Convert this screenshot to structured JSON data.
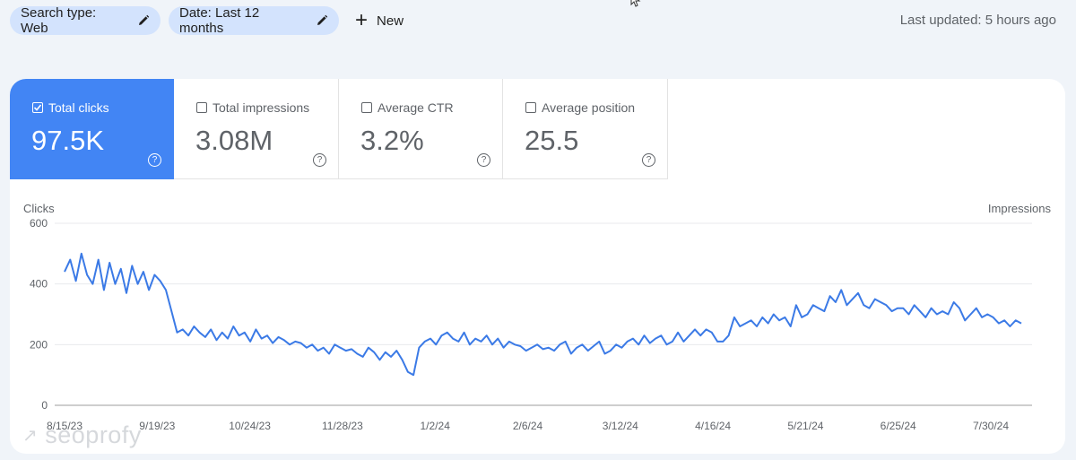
{
  "filters": {
    "search_type": "Search type: Web",
    "date": "Date: Last 12 months",
    "new_label": "New",
    "last_updated": "Last updated: 5 hours ago"
  },
  "metrics": [
    {
      "label": "Total clicks",
      "value": "97.5K",
      "checked": true,
      "help": "?"
    },
    {
      "label": "Total impressions",
      "value": "3.08M",
      "checked": false,
      "help": "?"
    },
    {
      "label": "Average CTR",
      "value": "3.2%",
      "checked": false,
      "help": "?"
    },
    {
      "label": "Average position",
      "value": "25.5",
      "checked": false,
      "help": "?"
    }
  ],
  "watermark": "seoprofy",
  "colors": {
    "accent": "#4285f4",
    "line": "#3b7ae6",
    "chip": "#d3e3fd"
  },
  "chart_data": {
    "type": "line",
    "ylabel": "Clicks",
    "y2label": "Impressions",
    "ylim": [
      0,
      600
    ],
    "yticks": [
      0,
      200,
      400,
      600
    ],
    "xtick_labels": [
      "8/15/23",
      "9/19/23",
      "10/24/23",
      "11/28/23",
      "1/2/24",
      "2/6/24",
      "3/12/24",
      "4/16/24",
      "5/21/24",
      "6/25/24",
      "7/30/24"
    ],
    "grid": true,
    "series": [
      {
        "values": [
          440,
          480,
          410,
          500,
          430,
          400,
          480,
          380,
          470,
          400,
          450,
          370,
          460,
          400,
          440,
          380,
          430,
          410,
          380,
          310,
          240,
          250,
          230,
          260,
          240,
          225,
          250,
          215,
          240,
          220,
          260,
          230,
          240,
          210,
          250,
          220,
          230,
          205,
          225,
          215,
          200,
          210,
          205,
          190,
          200,
          180,
          190,
          170,
          200,
          190,
          180,
          185,
          170,
          160,
          190,
          175,
          150,
          175,
          160,
          180,
          150,
          110,
          100,
          190,
          210,
          220,
          200,
          230,
          240,
          220,
          210,
          240,
          200,
          220,
          210,
          230,
          200,
          220,
          190,
          210,
          200,
          195,
          180,
          190,
          200,
          185,
          190,
          180,
          200,
          210,
          170,
          190,
          200,
          180,
          195,
          210,
          170,
          180,
          200,
          190,
          210,
          220,
          200,
          230,
          205,
          220,
          230,
          200,
          210,
          240,
          210,
          230,
          250,
          230,
          250,
          240,
          210,
          210,
          230,
          290,
          260,
          270,
          280,
          260,
          290,
          270,
          300,
          280,
          290,
          260,
          330,
          290,
          300,
          330,
          320,
          310,
          360,
          340,
          380,
          330,
          350,
          370,
          330,
          320,
          350,
          340,
          330,
          310,
          320,
          320,
          300,
          330,
          310,
          290,
          320,
          300,
          310,
          300,
          340,
          320,
          280,
          300,
          320,
          290,
          300,
          290,
          270,
          280,
          260,
          280,
          270
        ]
      }
    ]
  }
}
